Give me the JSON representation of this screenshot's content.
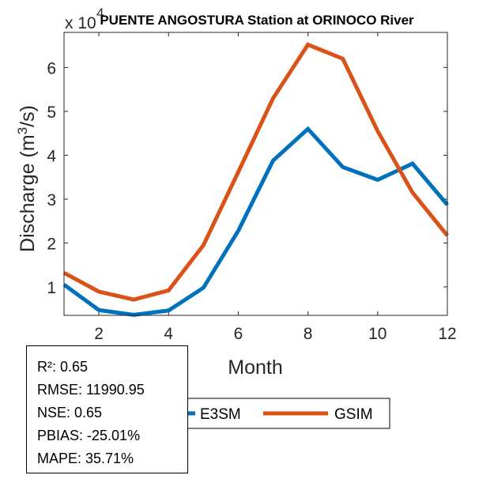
{
  "chart_data": {
    "type": "line",
    "title": "PUENTE ANGOSTURA  Station at  ORINOCO  River",
    "xlabel": "Month",
    "ylabel": "Discharge (m",
    "ylabel_sup": "3",
    "ylabel_end": "/s)",
    "y_exponent_base": "x 10",
    "y_exponent_power": "4",
    "x": [
      1,
      2,
      3,
      4,
      5,
      6,
      7,
      8,
      9,
      10,
      11,
      12
    ],
    "xlim": [
      1,
      12
    ],
    "ylim": [
      0.35,
      6.8
    ],
    "xticks": [
      2,
      4,
      6,
      8,
      10,
      12
    ],
    "yticks": [
      1,
      2,
      3,
      4,
      5,
      6
    ],
    "series": [
      {
        "name": "E3SM",
        "color": "#0072BD",
        "values": [
          1.05,
          0.47,
          0.36,
          0.46,
          0.98,
          2.28,
          3.88,
          4.6,
          3.73,
          3.44,
          3.81,
          2.87
        ]
      },
      {
        "name": "GSIM",
        "color": "#D95319",
        "values": [
          1.32,
          0.89,
          0.71,
          0.92,
          1.95,
          3.62,
          5.3,
          6.52,
          6.2,
          4.55,
          3.15,
          2.17
        ]
      }
    ],
    "legend": [
      "E3SM",
      "GSIM"
    ]
  },
  "stats": {
    "r2": "R²: 0.65",
    "rmse": "RMSE: 11990.95",
    "nse": "NSE: 0.65",
    "pbias": "PBIAS: -25.01%",
    "mape": "MAPE: 35.71%"
  }
}
